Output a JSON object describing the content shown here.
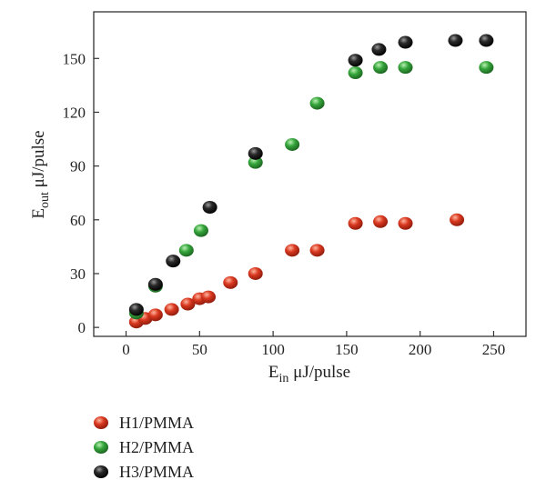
{
  "chart_data": {
    "type": "scatter",
    "title": "",
    "xlabel": {
      "main": "E",
      "sub": "in",
      "rest": " μJ/pulse"
    },
    "ylabel": {
      "main": "E",
      "sub": "out",
      "rest": " μJ/pulse"
    },
    "xlim": [
      -22,
      272
    ],
    "ylim": [
      -5,
      176
    ],
    "xticks": [
      0,
      50,
      100,
      150,
      200,
      250
    ],
    "yticks": [
      0,
      30,
      60,
      90,
      120,
      150
    ],
    "grid": false,
    "legend_position": "bottom-left",
    "series": [
      {
        "name": "H1/PMMA",
        "color": "#cc2a1a",
        "points": [
          [
            7,
            3
          ],
          [
            13,
            5
          ],
          [
            20,
            7
          ],
          [
            31,
            10
          ],
          [
            42,
            13
          ],
          [
            50,
            16
          ],
          [
            56,
            17
          ],
          [
            71,
            25
          ],
          [
            88,
            30
          ],
          [
            113,
            43
          ],
          [
            130,
            43
          ],
          [
            156,
            58
          ],
          [
            173,
            59
          ],
          [
            190,
            58
          ],
          [
            225,
            60
          ]
        ]
      },
      {
        "name": "H2/PMMA",
        "color": "#2f9a35",
        "points": [
          [
            7,
            8
          ],
          [
            20,
            23
          ],
          [
            41,
            43
          ],
          [
            51,
            54
          ],
          [
            88,
            92
          ],
          [
            113,
            102
          ],
          [
            130,
            125
          ],
          [
            156,
            142
          ],
          [
            173,
            145
          ],
          [
            190,
            145
          ],
          [
            245,
            145
          ]
        ]
      },
      {
        "name": "H3/PMMA",
        "color": "#1a1a1a",
        "points": [
          [
            7,
            10
          ],
          [
            20,
            24
          ],
          [
            32,
            37
          ],
          [
            57,
            67
          ],
          [
            88,
            97
          ],
          [
            156,
            149
          ],
          [
            172,
            155
          ],
          [
            190,
            159
          ],
          [
            224,
            160
          ],
          [
            245,
            160
          ]
        ]
      }
    ]
  }
}
